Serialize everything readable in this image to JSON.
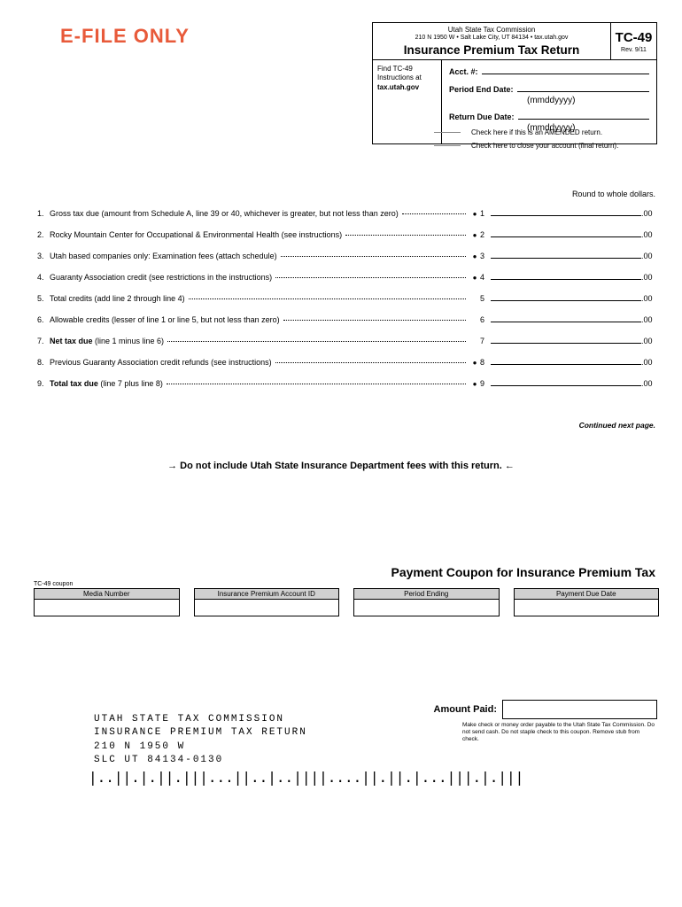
{
  "efile": "E-FILE ONLY",
  "header": {
    "agency": "Utah State Tax Commission",
    "address": "210 N 1950 W • Salt Lake City, UT 84134 • tax.utah.gov",
    "title": "Insurance Premium Tax Return",
    "code": "TC-49",
    "rev": "Rev. 9/11",
    "instructions_l1": "Find TC-49",
    "instructions_l2": "Instructions at",
    "instructions_l3": "tax.utah.gov",
    "acct_label": "Acct. #:",
    "period_end_label": "Period End Date:",
    "return_due_label": "Return Due Date:",
    "date_hint": "(mmddyyyy)"
  },
  "checks": {
    "amended": "Check here if this is an AMENDED return.",
    "close": "Check here to close your account (final return)."
  },
  "round_note": "Round to whole dollars.",
  "lines": [
    {
      "n": "1.",
      "text": "Gross tax due (amount from Schedule A, line 39 or 40, whichever is greater, but not less than zero)",
      "bullet": true,
      "n2": "1",
      "cents": ".00"
    },
    {
      "n": "2.",
      "text": "Rocky Mountain Center for Occupational & Environmental Health (see instructions)",
      "bullet": true,
      "n2": "2",
      "cents": ".00"
    },
    {
      "n": "3.",
      "text": "Utah based companies only: Examination fees (attach schedule)",
      "bullet": true,
      "n2": "3",
      "cents": ".00"
    },
    {
      "n": "4.",
      "text": "Guaranty Association credit (see restrictions in the instructions)",
      "bullet": true,
      "n2": "4",
      "cents": ".00"
    },
    {
      "n": "5.",
      "text": "Total credits (add line 2 through line 4)",
      "bullet": false,
      "n2": "5",
      "cents": ".00"
    },
    {
      "n": "6.",
      "text": "Allowable credits (lesser of line 1 or line 5, but not less than zero)",
      "bullet": false,
      "n2": "6",
      "cents": ".00"
    },
    {
      "n": "7.",
      "text": "Net tax due (line 1 minus line 6)",
      "bold": true,
      "boldPrefix": "Net tax due",
      "suffix": " (line 1 minus line 6)",
      "bullet": false,
      "n2": "7",
      "cents": ".00"
    },
    {
      "n": "8.",
      "text": "Previous Guaranty Association credit refunds (see instructions)",
      "bullet": true,
      "n2": "8",
      "cents": ".00"
    },
    {
      "n": "9.",
      "text": "Total tax due (line 7 plus line 8)",
      "bold": true,
      "boldPrefix": "Total tax due",
      "suffix": " (line 7 plus line 8)",
      "bullet": true,
      "n2": "9",
      "cents": ".00"
    }
  ],
  "continued": "Continued next page.",
  "warning": "→ Do not include Utah State Insurance Department fees with this return. ←",
  "coupon": {
    "title": "Payment Coupon for Insurance Premium Tax",
    "small_label": "TC-49 coupon",
    "headers": [
      "Media Number",
      "Insurance Premium Account ID",
      "Period Ending",
      "Payment Due Date"
    ],
    "amount_paid_label": "Amount Paid:",
    "note": "Make check or money order payable to the Utah State Tax Commission. Do not send cash. Do not staple check to this coupon. Remove stub from check."
  },
  "mailing": {
    "l1": "UTAH STATE TAX COMMISSION",
    "l2": "INSURANCE PREMIUM TAX RETURN",
    "l3": "210 N 1950 W",
    "l4": "SLC UT  84134-0130"
  },
  "barcode": "|..||.|.||.|||...||..|..||||....||.||.|...|||.|.|||"
}
